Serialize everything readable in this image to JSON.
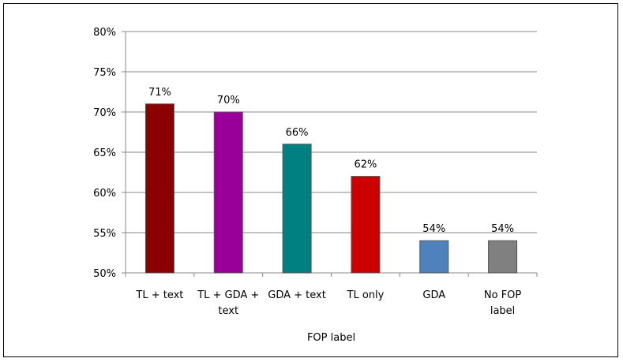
{
  "chart_data": {
    "type": "bar",
    "title": "",
    "xlabel": "FOP label",
    "ylabel": "",
    "ylim": [
      50,
      80
    ],
    "yticks": [
      "50%",
      "55%",
      "60%",
      "65%",
      "70%",
      "75%",
      "80%"
    ],
    "categories": [
      [
        "TL + text"
      ],
      [
        "TL + GDA +",
        "text"
      ],
      [
        "GDA + text"
      ],
      [
        "TL only"
      ],
      [
        "GDA"
      ],
      [
        "No FOP",
        "label"
      ]
    ],
    "values": [
      71,
      70,
      66,
      62,
      54,
      54
    ],
    "data_labels": [
      "71%",
      "70%",
      "66%",
      "62%",
      "54%",
      "54%"
    ],
    "colors": [
      "#8B0000",
      "#990099",
      "#008080",
      "#CC0000",
      "#4F81BD",
      "#808080"
    ],
    "grid": true,
    "legend": "none"
  }
}
